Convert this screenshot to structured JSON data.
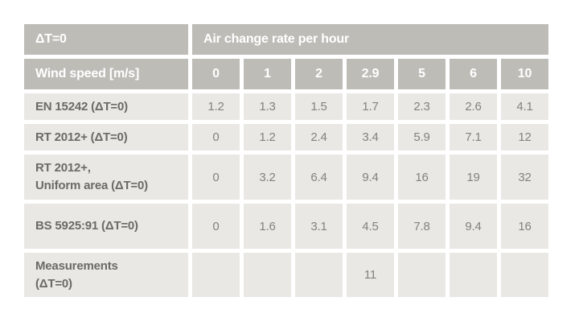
{
  "table": {
    "corner_label": "ΔT=0",
    "span_header": "Air change rate per hour",
    "wind_speed_label": "Wind speed [m/s]",
    "wind_speeds": [
      "0",
      "1",
      "2",
      "2.9",
      "5",
      "6",
      "10"
    ],
    "rows": [
      {
        "label": "EN 15242 (ΔT=0)",
        "values": [
          "1.2",
          "1.3",
          "1.5",
          "1.7",
          "2.3",
          "2.6",
          "4.1"
        ]
      },
      {
        "label": "RT 2012+ (ΔT=0)",
        "values": [
          "0",
          "1.2",
          "2.4",
          "3.4",
          "5.9",
          "7.1",
          "12"
        ]
      },
      {
        "label": "RT 2012+,\nUniform area (ΔT=0)",
        "values": [
          "0",
          "3.2",
          "6.4",
          "9.4",
          "16",
          "19",
          "32"
        ]
      },
      {
        "label": "BS 5925:91 (ΔT=0)",
        "values": [
          "0",
          "1.6",
          "3.1",
          "4.5",
          "7.8",
          "9.4",
          "16"
        ]
      },
      {
        "label": "Measurements\n(ΔT=0)",
        "values": [
          "",
          "",
          "",
          "11",
          "",
          "",
          ""
        ]
      }
    ]
  },
  "colors": {
    "header_bg": "#bdbcb7",
    "cell_bg": "#e9e8e4",
    "header_text": "#ffffff",
    "label_text": "#6b6a66",
    "value_text": "#83827d",
    "page_bg": "#ffffff"
  },
  "chart_data": {
    "type": "table",
    "title": "Air change rate per hour",
    "corner_header": "ΔT=0",
    "columns_label": "Wind speed [m/s]",
    "columns": [
      0,
      1,
      2,
      2.9,
      5,
      6,
      10
    ],
    "rows": [
      {
        "name": "EN 15242 (ΔT=0)",
        "values": [
          1.2,
          1.3,
          1.5,
          1.7,
          2.3,
          2.6,
          4.1
        ]
      },
      {
        "name": "RT 2012+ (ΔT=0)",
        "values": [
          0,
          1.2,
          2.4,
          3.4,
          5.9,
          7.1,
          12
        ]
      },
      {
        "name": "RT 2012+, Uniform area (ΔT=0)",
        "values": [
          0,
          3.2,
          6.4,
          9.4,
          16,
          19,
          32
        ]
      },
      {
        "name": "BS 5925:91 (ΔT=0)",
        "values": [
          0,
          1.6,
          3.1,
          4.5,
          7.8,
          9.4,
          16
        ]
      },
      {
        "name": "Measurements (ΔT=0)",
        "values": [
          null,
          null,
          null,
          11,
          null,
          null,
          null
        ]
      }
    ]
  }
}
